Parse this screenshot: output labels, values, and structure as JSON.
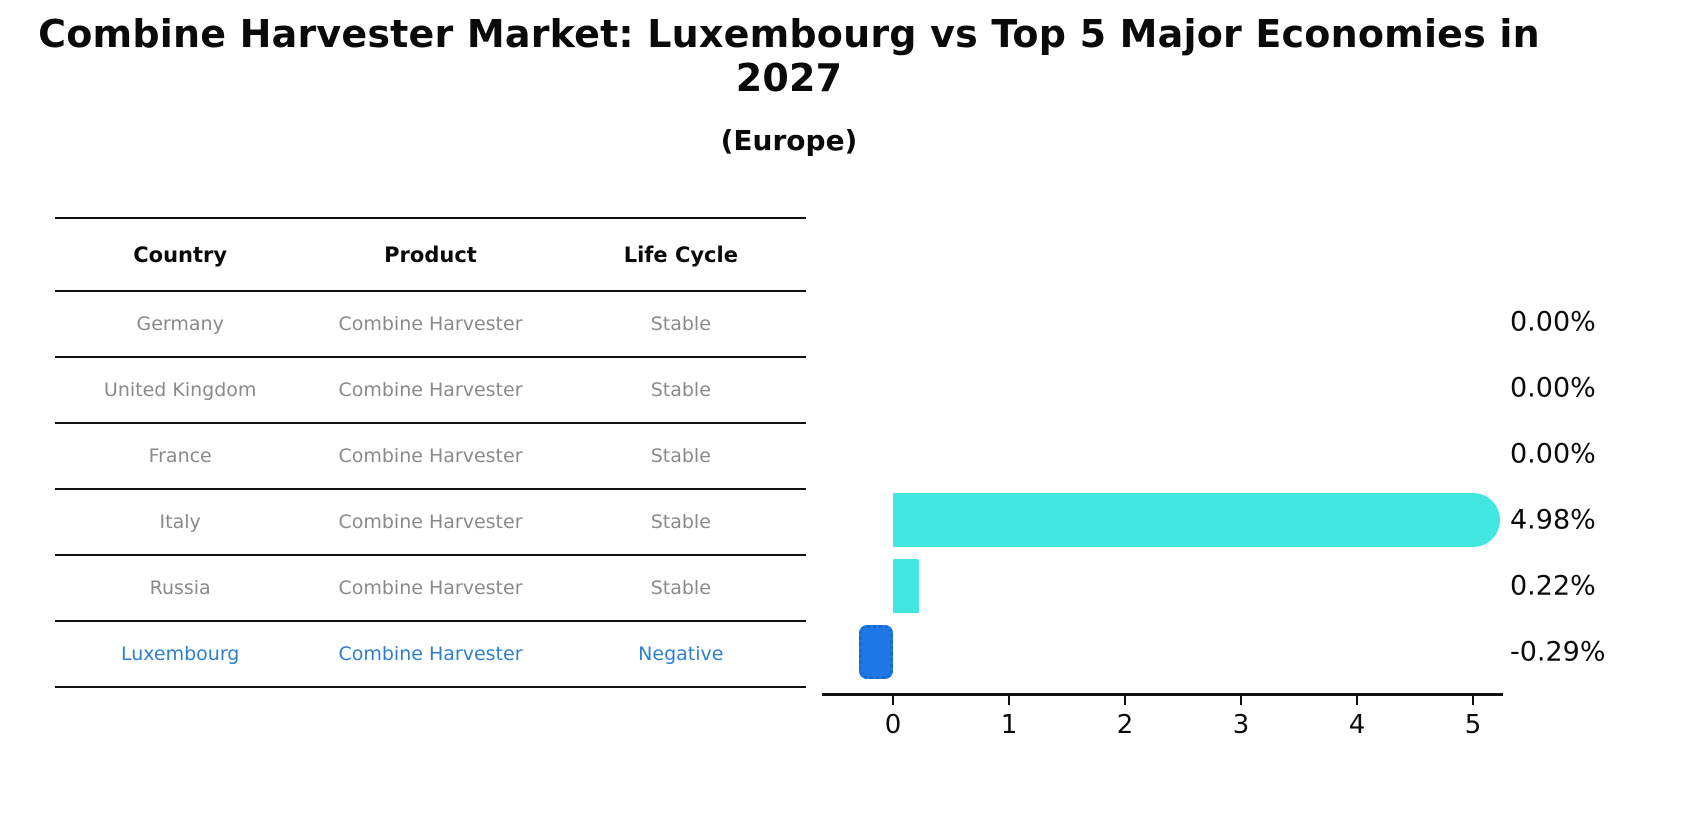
{
  "page": {
    "title": "Combine Harvester Market: Luxembourg vs Top 5 Major Economies in 2027",
    "subtitle": "(Europe)"
  },
  "table": {
    "headers": [
      "Country",
      "Product",
      "Life Cycle"
    ],
    "rows": [
      {
        "country": "Germany",
        "product": "Combine Harvester",
        "life_cycle": "Stable",
        "highlighted": false
      },
      {
        "country": "United Kingdom",
        "product": "Combine Harvester",
        "life_cycle": "Stable",
        "highlighted": false
      },
      {
        "country": "France",
        "product": "Combine Harvester",
        "life_cycle": "Stable",
        "highlighted": false
      },
      {
        "country": "Italy",
        "product": "Combine Harvester",
        "life_cycle": "Stable",
        "highlighted": false
      },
      {
        "country": "Russia",
        "product": "Combine Harvester",
        "life_cycle": "Stable",
        "highlighted": false
      },
      {
        "country": "Luxembourg",
        "product": "Combine Harvester",
        "life_cycle": "Negative",
        "highlighted": true
      }
    ]
  },
  "chart_data": {
    "type": "bar",
    "orientation": "horizontal",
    "title": "Combine Harvester Market: Luxembourg vs Top 5 Major Economies in 2027 (Europe)",
    "categories": [
      "Germany",
      "United Kingdom",
      "France",
      "Italy",
      "Russia",
      "Luxembourg"
    ],
    "values": [
      0.0,
      0.0,
      0.0,
      4.98,
      0.22,
      -0.29
    ],
    "value_labels": [
      "0.00%",
      "0.00%",
      "0.00%",
      "4.98%",
      "0.22%",
      "-0.29%"
    ],
    "x_ticks": [
      "0",
      "1",
      "2",
      "3",
      "4",
      "5"
    ],
    "xlim": [
      -0.61,
      5.26
    ],
    "xlabel": "",
    "ylabel": "",
    "grid": false,
    "legend": false,
    "colors": {
      "positive_bar": "#41e6e1",
      "negative_bar_fill": "#1e78e6",
      "negative_bar_border": "#1668cc",
      "highlight_text": "#2e7fd2",
      "row_text": "#8a8a8a",
      "label_text": "#0a0a0a"
    }
  }
}
